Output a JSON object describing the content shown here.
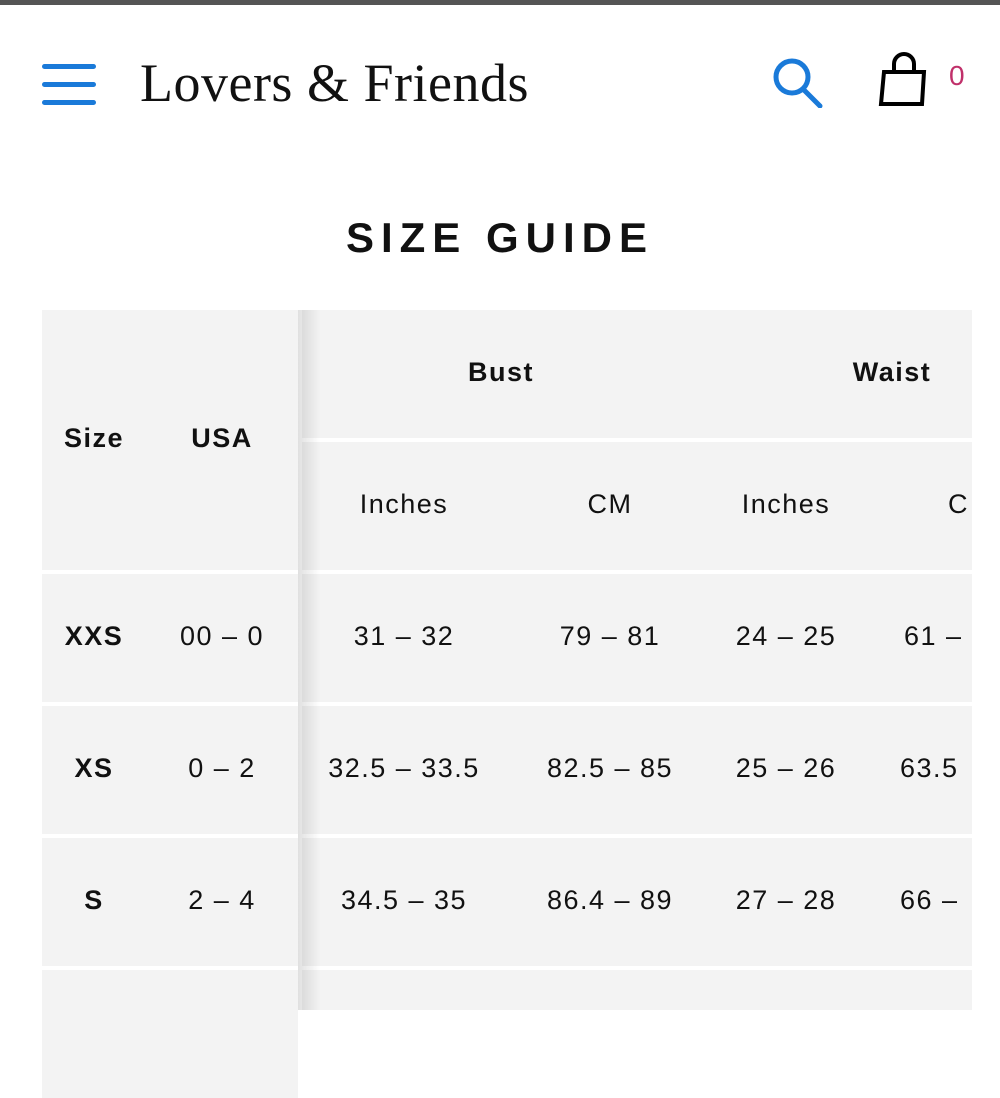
{
  "header": {
    "logo": "Lovers & Friends",
    "cart_count": "0",
    "menu_icon": "hamburger-icon",
    "search_icon": "search-icon",
    "cart_icon": "shopping-bag-icon",
    "accent_color": "#1a7ad9",
    "badge_color": "#c0306a"
  },
  "page": {
    "title": "SIZE GUIDE"
  },
  "table": {
    "fixed_headers": [
      "Size",
      "USA"
    ],
    "groups": [
      "Bust",
      "Waist"
    ],
    "units": [
      "Inches",
      "CM",
      "Inches",
      "C"
    ],
    "rows": [
      {
        "size": "XXS",
        "usa": "00 – 0",
        "values": [
          "31 – 32",
          "79 – 81",
          "24 – 25",
          "61 –"
        ]
      },
      {
        "size": "XS",
        "usa": "0 – 2",
        "values": [
          "32.5 – 33.5",
          "82.5 – 85",
          "25 – 26",
          "63.5"
        ]
      },
      {
        "size": "S",
        "usa": "2 – 4",
        "values": [
          "34.5 – 35",
          "86.4 – 89",
          "27 – 28",
          "66 –"
        ]
      }
    ]
  }
}
